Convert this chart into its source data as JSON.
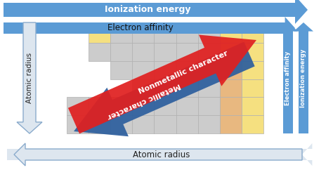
{
  "bg_color": "#ffffff",
  "table_grid_color": "#b0b0b0",
  "table_fill_gray": "#cccccc",
  "table_fill_yellow": "#f5e080",
  "table_fill_orange": "#e8b880",
  "top_arrow_color": "#5b9bd5",
  "side_arrow_color": "#5b9bd5",
  "outline_arrow_color": "#c8d8e8",
  "red_arrow_color": "#e02020",
  "blue_diag_color": "#2e5f9e",
  "label_ionization": "Ionization energy",
  "label_electron_affinity": "Electron affinity",
  "label_atomic_radius_left": "Atomic radius",
  "label_atomic_radius_bottom": "Atomic radius",
  "label_electron_affinity_right": "Electron affinity",
  "label_ionization_right": "Ionization energy",
  "label_nonmetallic": "Nonmetallic character",
  "label_metallic": "Metallic character"
}
